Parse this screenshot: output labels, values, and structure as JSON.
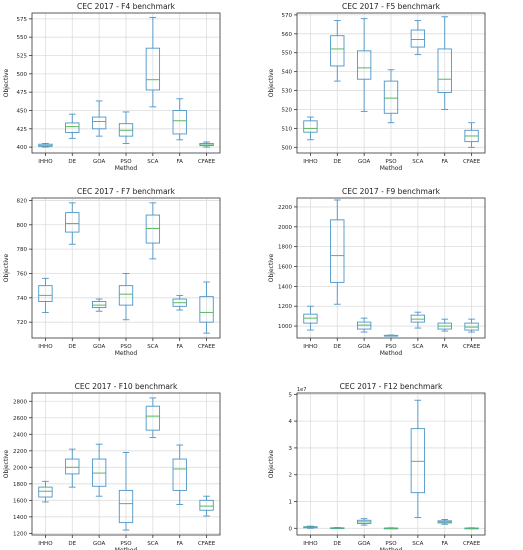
{
  "chart_data": [
    {
      "type": "box",
      "title": "CEC 2017 - F4 benchmark",
      "xlabel": "Method",
      "ylabel": "Objective",
      "categories": [
        "IHHO",
        "DE",
        "GOA",
        "PSO",
        "SCA",
        "FA",
        "CFAEE"
      ],
      "ylim": [
        392,
        583
      ],
      "yticks": [
        400,
        425,
        450,
        475,
        500,
        525,
        550,
        575
      ],
      "tick_labels": [
        "400",
        "425",
        "450",
        "475",
        "500",
        "525",
        "550",
        "575"
      ],
      "scale_label": "",
      "grid": true,
      "series": [
        {
          "min": 400,
          "q1": 401,
          "median": 402,
          "q3": 404,
          "max": 405
        },
        {
          "min": 412,
          "q1": 420,
          "median": 428,
          "q3": 433,
          "max": 445
        },
        {
          "min": 415,
          "q1": 425,
          "median": 435,
          "q3": 441,
          "max": 463
        },
        {
          "min": 405,
          "q1": 415,
          "median": 423,
          "q3": 432,
          "max": 448
        },
        {
          "min": 455,
          "q1": 478,
          "median": 492,
          "q3": 535,
          "max": 577
        },
        {
          "min": 410,
          "q1": 418,
          "median": 436,
          "q3": 450,
          "max": 466
        },
        {
          "min": 400,
          "q1": 402,
          "median": 403,
          "q3": 405,
          "max": 407
        }
      ]
    },
    {
      "type": "box",
      "title": "CEC 2017 - F5 benchmark",
      "xlabel": "Method",
      "ylabel": "Objective",
      "categories": [
        "IHHO",
        "DE",
        "GOA",
        "PSO",
        "SCA",
        "FA",
        "CFAEE"
      ],
      "ylim": [
        497,
        571
      ],
      "yticks": [
        500,
        510,
        520,
        530,
        540,
        550,
        560,
        570
      ],
      "tick_labels": [
        "500",
        "510",
        "520",
        "530",
        "540",
        "550",
        "560",
        "570"
      ],
      "scale_label": "",
      "grid": true,
      "series": [
        {
          "min": 504,
          "q1": 508,
          "median": 510,
          "q3": 514,
          "max": 516
        },
        {
          "min": 535,
          "q1": 543,
          "median": 552,
          "q3": 559,
          "max": 567
        },
        {
          "min": 519,
          "q1": 536,
          "median": 542,
          "q3": 551,
          "max": 568
        },
        {
          "min": 513,
          "q1": 518,
          "median": 526,
          "q3": 535,
          "max": 541
        },
        {
          "min": 549,
          "q1": 553,
          "median": 557,
          "q3": 562,
          "max": 567
        },
        {
          "min": 520,
          "q1": 529,
          "median": 536,
          "q3": 552,
          "max": 569
        },
        {
          "min": 500,
          "q1": 503,
          "median": 506,
          "q3": 509,
          "max": 513
        }
      ]
    },
    {
      "type": "box",
      "title": "CEC 2017 - F7 benchmark",
      "xlabel": "Method",
      "ylabel": "Objective",
      "categories": [
        "IHHO",
        "DE",
        "GOA",
        "PSO",
        "SCA",
        "FA",
        "CFAEE"
      ],
      "ylim": [
        707,
        822
      ],
      "yticks": [
        720,
        740,
        760,
        780,
        800,
        820
      ],
      "tick_labels": [
        "720",
        "740",
        "760",
        "780",
        "800",
        "820"
      ],
      "scale_label": "",
      "grid": true,
      "series": [
        {
          "min": 728,
          "q1": 737,
          "median": 742,
          "q3": 750,
          "max": 756
        },
        {
          "min": 784,
          "q1": 794,
          "median": 801,
          "q3": 810,
          "max": 818
        },
        {
          "min": 729,
          "q1": 732,
          "median": 734,
          "q3": 737,
          "max": 739
        },
        {
          "min": 722,
          "q1": 734,
          "median": 743,
          "q3": 750,
          "max": 760
        },
        {
          "min": 772,
          "q1": 785,
          "median": 797,
          "q3": 808,
          "max": 818
        },
        {
          "min": 730,
          "q1": 733,
          "median": 736,
          "q3": 739,
          "max": 742
        },
        {
          "min": 711,
          "q1": 720,
          "median": 728,
          "q3": 741,
          "max": 753
        }
      ]
    },
    {
      "type": "box",
      "title": "CEC 2017 - F9 benchmark",
      "xlabel": "Method",
      "ylabel": "Objective",
      "categories": [
        "IHHO",
        "DE",
        "GOA",
        "PSO",
        "SCA",
        "FA",
        "CFAEE"
      ],
      "ylim": [
        880,
        2290
      ],
      "yticks": [
        1000,
        1200,
        1400,
        1600,
        1800,
        2000,
        2200
      ],
      "tick_labels": [
        "1000",
        "1200",
        "1400",
        "1600",
        "1800",
        "2000",
        "2200"
      ],
      "scale_label": "",
      "grid": true,
      "series": [
        {
          "min": 960,
          "q1": 1030,
          "median": 1080,
          "q3": 1120,
          "max": 1200
        },
        {
          "min": 1220,
          "q1": 1440,
          "median": 1710,
          "q3": 2070,
          "max": 2270
        },
        {
          "min": 940,
          "q1": 970,
          "median": 1010,
          "q3": 1040,
          "max": 1080
        },
        {
          "min": 900,
          "q1": 903,
          "median": 905,
          "q3": 907,
          "max": 910
        },
        {
          "min": 980,
          "q1": 1040,
          "median": 1070,
          "q3": 1110,
          "max": 1140
        },
        {
          "min": 950,
          "q1": 970,
          "median": 1000,
          "q3": 1030,
          "max": 1070
        },
        {
          "min": 940,
          "q1": 960,
          "median": 990,
          "q3": 1030,
          "max": 1070
        }
      ]
    },
    {
      "type": "box",
      "title": "CEC 2017 - F10 benchmark",
      "xlabel": "Method",
      "ylabel": "Objective",
      "categories": [
        "IHHO",
        "DE",
        "GOA",
        "PSO",
        "SCA",
        "FA",
        "CFAEE"
      ],
      "ylim": [
        1180,
        2900
      ],
      "yticks": [
        1200,
        1400,
        1600,
        1800,
        2000,
        2200,
        2400,
        2600,
        2800
      ],
      "tick_labels": [
        "1200",
        "1400",
        "1600",
        "1800",
        "2000",
        "2200",
        "2400",
        "2600",
        "2800"
      ],
      "scale_label": "",
      "grid": true,
      "series": [
        {
          "min": 1580,
          "q1": 1640,
          "median": 1710,
          "q3": 1760,
          "max": 1830
        },
        {
          "min": 1760,
          "q1": 1920,
          "median": 2000,
          "q3": 2100,
          "max": 2220
        },
        {
          "min": 1650,
          "q1": 1770,
          "median": 1930,
          "q3": 2100,
          "max": 2280
        },
        {
          "min": 1240,
          "q1": 1330,
          "median": 1560,
          "q3": 1720,
          "max": 2180
        },
        {
          "min": 2360,
          "q1": 2450,
          "median": 2620,
          "q3": 2740,
          "max": 2840
        },
        {
          "min": 1550,
          "q1": 1720,
          "median": 1980,
          "q3": 2100,
          "max": 2270
        },
        {
          "min": 1410,
          "q1": 1480,
          "median": 1530,
          "q3": 1600,
          "max": 1650
        }
      ]
    },
    {
      "type": "box",
      "title": "CEC 2017 - F12 benchmark",
      "xlabel": "Method",
      "ylabel": "Objective",
      "categories": [
        "IHHO",
        "DE",
        "GOA",
        "PSO",
        "SCA",
        "FA",
        "CFAEE"
      ],
      "ylim": [
        -0.25,
        5.05
      ],
      "yticks": [
        0,
        1,
        2,
        3,
        4,
        5
      ],
      "tick_labels": [
        "0",
        "1",
        "2",
        "3",
        "4",
        "5"
      ],
      "scale_label": "1e7",
      "grid": true,
      "series": [
        {
          "min": 0.0,
          "q1": 0.02,
          "median": 0.04,
          "q3": 0.06,
          "max": 0.08
        },
        {
          "min": 0.0,
          "q1": 0.0,
          "median": 0.01,
          "q3": 0.02,
          "max": 0.03
        },
        {
          "min": 0.12,
          "q1": 0.18,
          "median": 0.24,
          "q3": 0.3,
          "max": 0.36
        },
        {
          "min": 0.0,
          "q1": 0.0,
          "median": 0.0,
          "q3": 0.01,
          "max": 0.02
        },
        {
          "min": 0.4,
          "q1": 1.33,
          "median": 2.5,
          "q3": 3.72,
          "max": 4.78
        },
        {
          "min": 0.15,
          "q1": 0.2,
          "median": 0.24,
          "q3": 0.28,
          "max": 0.33
        },
        {
          "min": 0.0,
          "q1": 0.0,
          "median": 0.0,
          "q3": 0.01,
          "max": 0.02
        }
      ]
    }
  ],
  "style": {
    "box_color": "#4c95c7",
    "median_color": "#59b85d",
    "grid_color": "#dddddd",
    "axis_color": "#333333",
    "text_color": "#222222"
  }
}
